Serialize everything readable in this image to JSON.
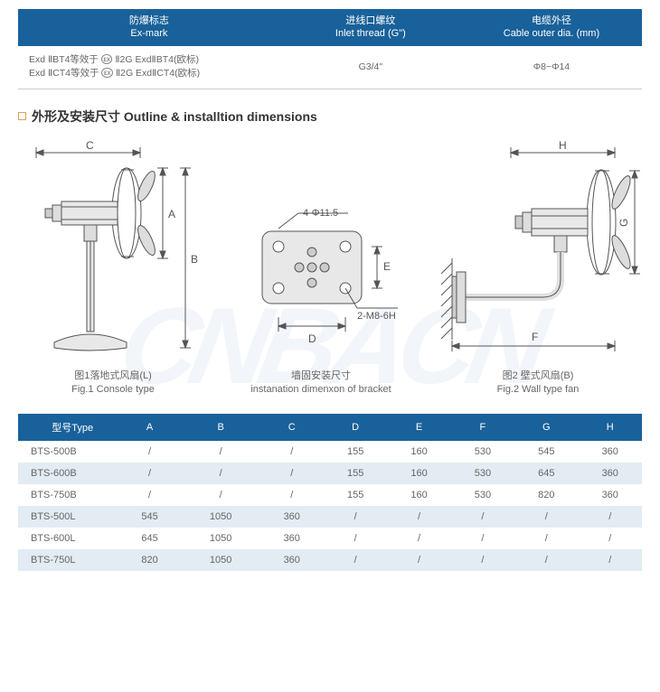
{
  "topTable": {
    "headers": [
      {
        "cn": "防爆标志",
        "en": "Ex-mark"
      },
      {
        "cn": "进线口螺纹",
        "en": "Inlet thread (G\")"
      },
      {
        "cn": "电缆外径",
        "en": "Cable outer dia. (mm)"
      }
    ],
    "row": {
      "exmark_l1_a": "Exd ⅡBT4等效于",
      "exmark_l1_b": "Ⅱ2G ExdⅡBT4(欧标)",
      "exmark_l2_a": "Exd ⅡCT4等效于",
      "exmark_l2_b": "Ⅱ2G ExdⅡCT4(欧标)",
      "inlet": "G3/4\"",
      "cable": "Φ8~Φ14"
    }
  },
  "sectionTitle": "外形及安装尺寸 Outline & installtion dimensions",
  "diagramLabels": {
    "A": "A",
    "B": "B",
    "C": "C",
    "D": "D",
    "E": "E",
    "F": "F",
    "G": "G",
    "H": "H",
    "holes": "4-Φ11.5",
    "threads": "2-M8-6H"
  },
  "captions": {
    "fig1_cn": "图1落地式风扇(L)",
    "fig1_en": "Fig.1 Console type",
    "mid_cn": "墙固安装尺寸",
    "mid_en": "instanation dimenxon of bracket",
    "fig2_cn": "图2 壁式风扇(B)",
    "fig2_en": "Fig.2 Wall type fan"
  },
  "dimTable": {
    "typeHeader": "型号Type",
    "cols": [
      "A",
      "B",
      "C",
      "D",
      "E",
      "F",
      "G",
      "H"
    ],
    "rows": [
      {
        "type": "BTS-500B",
        "v": [
          "/",
          "/",
          "/",
          "155",
          "160",
          "530",
          "545",
          "360"
        ]
      },
      {
        "type": "BTS-600B",
        "v": [
          "/",
          "/",
          "/",
          "155",
          "160",
          "530",
          "645",
          "360"
        ]
      },
      {
        "type": "BTS-750B",
        "v": [
          "/",
          "/",
          "/",
          "155",
          "160",
          "530",
          "820",
          "360"
        ]
      },
      {
        "type": "BTS-500L",
        "v": [
          "545",
          "1050",
          "360",
          "/",
          "/",
          "/",
          "/",
          "/"
        ]
      },
      {
        "type": "BTS-600L",
        "v": [
          "645",
          "1050",
          "360",
          "/",
          "/",
          "/",
          "/",
          "/"
        ]
      },
      {
        "type": "BTS-750L",
        "v": [
          "820",
          "1050",
          "360",
          "/",
          "/",
          "/",
          "/",
          "/"
        ]
      }
    ]
  },
  "watermark": "CNBACN",
  "colors": {
    "headerBg": "#19619a",
    "altRow": "#e2ecf2",
    "accent": "#d9a24a"
  }
}
